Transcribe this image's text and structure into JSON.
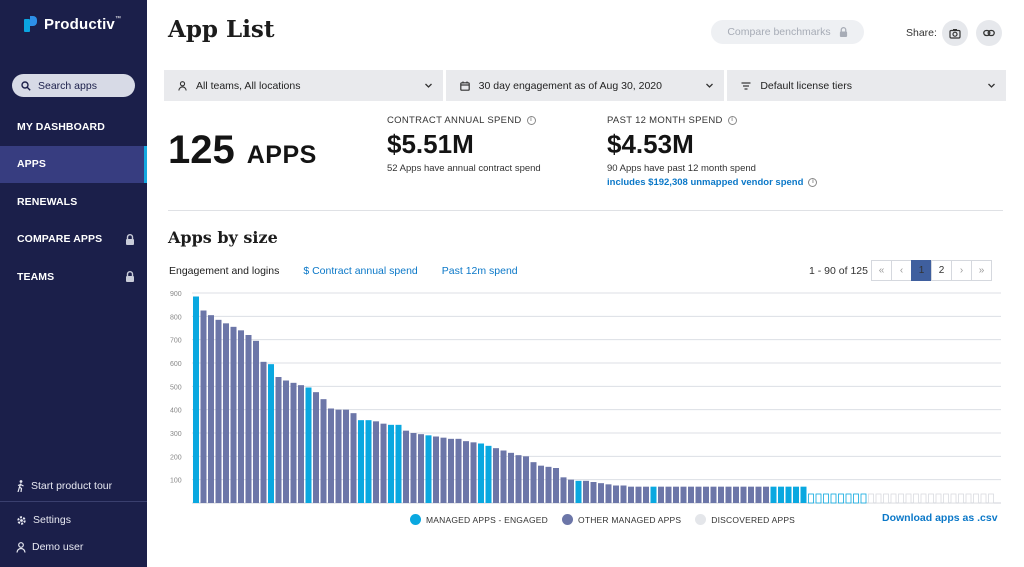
{
  "sidebar": {
    "brand": "Productiv",
    "search_label": "Search apps",
    "items": [
      {
        "label": "MY DASHBOARD",
        "locked": false,
        "active": false
      },
      {
        "label": "APPS",
        "locked": false,
        "active": true
      },
      {
        "label": "RENEWALS",
        "locked": false,
        "active": false
      },
      {
        "label": "COMPARE APPS",
        "locked": true,
        "active": false
      },
      {
        "label": "TEAMS",
        "locked": true,
        "active": false
      }
    ],
    "tour_label": "Start product tour",
    "settings_label": "Settings",
    "user_label": "Demo user"
  },
  "header": {
    "title": "App List",
    "benchmark_label": "Compare benchmarks",
    "share_label": "Share:"
  },
  "filters": {
    "teams": "All teams, All locations",
    "engagement": "30 day engagement as of Aug 30, 2020",
    "license": "Default license tiers"
  },
  "summary": {
    "apps_count": "125",
    "apps_unit": "APPS",
    "contract": {
      "label": "CONTRACT ANNUAL SPEND",
      "value": "$5.51M",
      "sub": "52 Apps have annual contract spend"
    },
    "past": {
      "label": "PAST 12 MONTH SPEND",
      "value": "$4.53M",
      "sub": "90 Apps have past 12 month spend",
      "link": "includes $192,308 unmapped vendor spend"
    }
  },
  "section": {
    "title": "Apps by size",
    "tabs": [
      "Engagement and logins",
      "$ Contract annual spend",
      "Past 12m spend"
    ],
    "pager_info": "1 - 90 of 125",
    "pages": [
      "1",
      "2"
    ],
    "current_page": "1"
  },
  "legend": {
    "engaged": "MANAGED APPS - ENGAGED",
    "other": "OTHER MANAGED APPS",
    "discovered": "DISCOVERED APPS"
  },
  "download_label": "Download apps as .csv",
  "colors": {
    "engaged": "#0aa8e0",
    "other": "#6c76a8",
    "discovered": "#d9dbe0",
    "accent": "#0b78c8",
    "sidebar": "#1b1f4a"
  },
  "chart_data": {
    "type": "bar",
    "ylim": [
      0,
      900
    ],
    "yticks": [
      100,
      200,
      300,
      400,
      500,
      600,
      700,
      800,
      900
    ],
    "grid": true,
    "legend": "bottom",
    "series": [
      {
        "name": "MANAGED APPS - ENGAGED",
        "color": "#0aa8e0"
      },
      {
        "name": "OTHER MANAGED APPS",
        "color": "#6c76a8"
      },
      {
        "name": "DISCOVERED APPS",
        "color": "#d9dbe0"
      }
    ],
    "values": [
      885,
      825,
      805,
      785,
      770,
      755,
      740,
      720,
      695,
      605,
      595,
      540,
      525,
      515,
      505,
      495,
      475,
      445,
      405,
      400,
      400,
      385,
      355,
      355,
      350,
      340,
      335,
      335,
      310,
      300,
      295,
      290,
      285,
      280,
      275,
      275,
      265,
      260,
      255,
      245,
      235,
      225,
      215,
      205,
      200,
      175,
      160,
      155,
      150,
      110,
      100,
      95,
      95,
      90,
      85,
      80,
      75,
      75,
      70,
      70,
      70,
      70,
      70,
      70,
      70,
      70,
      70,
      70,
      70,
      70,
      70,
      70,
      70,
      70,
      70,
      70,
      70,
      70,
      70,
      70,
      70,
      70,
      70,
      70,
      70,
      70,
      70,
      70,
      70,
      70
    ],
    "categories": [
      "engaged",
      "other",
      "other",
      "other",
      "other",
      "other",
      "other",
      "other",
      "other",
      "other",
      "engaged",
      "other",
      "other",
      "other",
      "other",
      "engaged",
      "other",
      "other",
      "other",
      "other",
      "other",
      "other",
      "engaged",
      "engaged",
      "other",
      "other",
      "engaged",
      "engaged",
      "other",
      "other",
      "other",
      "engaged",
      "other",
      "other",
      "other",
      "other",
      "other",
      "other",
      "engaged",
      "engaged",
      "other",
      "other",
      "other",
      "other",
      "other",
      "other",
      "other",
      "other",
      "other",
      "other",
      "other",
      "engaged",
      "other",
      "other",
      "other",
      "other",
      "other",
      "other",
      "other",
      "other",
      "other",
      "engaged",
      "other",
      "other",
      "other",
      "other",
      "other",
      "other",
      "other",
      "other",
      "other",
      "other",
      "other",
      "other",
      "other",
      "other",
      "other",
      "engaged",
      "engaged",
      "engaged",
      "engaged",
      "engaged",
      "discovered",
      "discovered",
      "discovered",
      "discovered",
      "discovered",
      "discovered",
      "discovered",
      "discovered"
    ]
  }
}
